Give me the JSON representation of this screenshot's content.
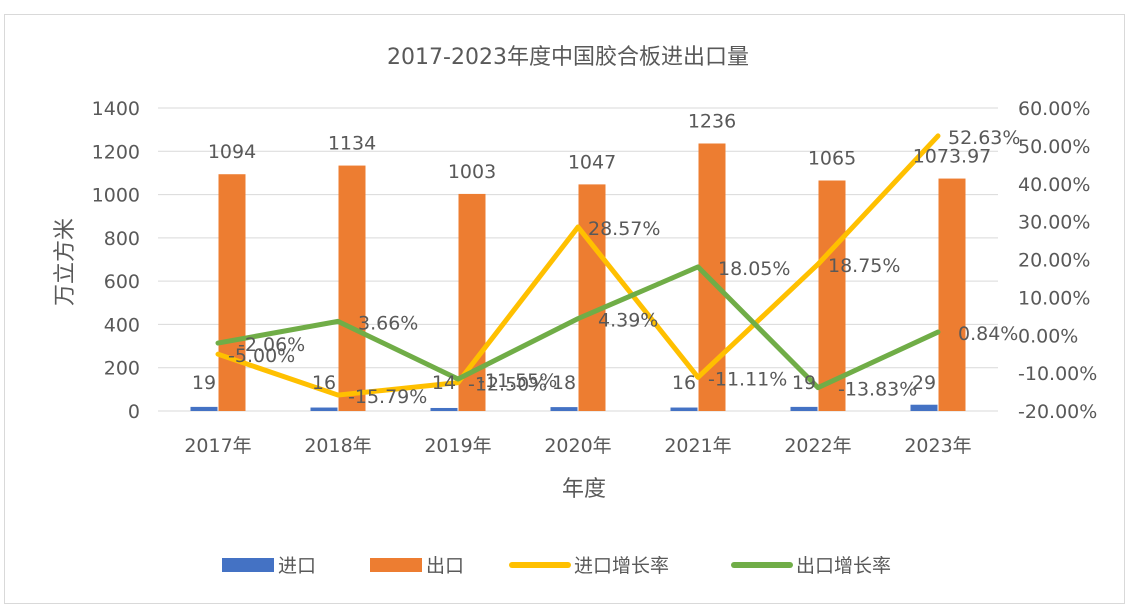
{
  "chart_data": {
    "type": "bar+line",
    "title": "2017-2023年度中国胶合板进出口量",
    "xlabel": "年度",
    "ylabel": "万立方米",
    "categories": [
      "2017年",
      "2018年",
      "2019年",
      "2020年",
      "2021年",
      "2022年",
      "2023年"
    ],
    "y_left": {
      "min": 0,
      "max": 1400,
      "ticks": [
        "0",
        "200",
        "400",
        "600",
        "800",
        "1000",
        "1200",
        "1400"
      ]
    },
    "y_right": {
      "min": -20,
      "max": 60,
      "ticks": [
        "-20.00%",
        "-10.00%",
        "0.00%",
        "10.00%",
        "20.00%",
        "30.00%",
        "40.00%",
        "50.00%",
        "60.00%"
      ]
    },
    "bar_series": [
      {
        "name": "进口",
        "color": "#4472C4",
        "values": [
          19,
          16,
          14,
          18,
          16,
          19,
          29
        ],
        "labels": [
          "19",
          "16",
          "14",
          "18",
          "16",
          "19",
          "29"
        ]
      },
      {
        "name": "出口",
        "color": "#ED7D31",
        "values": [
          1094,
          1134,
          1003,
          1047,
          1236,
          1065,
          1073.97
        ],
        "labels": [
          "1094",
          "1134",
          "1003",
          "1047",
          "1236",
          "1065",
          "1073.97"
        ]
      }
    ],
    "line_series": [
      {
        "name": "进口增长率",
        "color": "#FFC000",
        "values": [
          -5.0,
          -15.79,
          -12.5,
          28.57,
          -11.11,
          18.75,
          52.63
        ],
        "labels": [
          "-5.00%",
          "-15.79%",
          "-12.50%",
          "28.57%",
          "-11.11%",
          "18.75%",
          "52.63%"
        ]
      },
      {
        "name": "出口增长率",
        "color": "#70AD47",
        "values": [
          -2.06,
          3.66,
          -11.55,
          4.39,
          18.05,
          -13.83,
          0.84
        ],
        "labels": [
          "-2.06%",
          "3.66%",
          "-11.55%",
          "4.39%",
          "18.05%",
          "-13.83%",
          "0.84%"
        ]
      }
    ],
    "legend": [
      "进口",
      "出口",
      "进口增长率",
      "出口增长率"
    ],
    "legend_position": "bottom",
    "grid": true
  }
}
